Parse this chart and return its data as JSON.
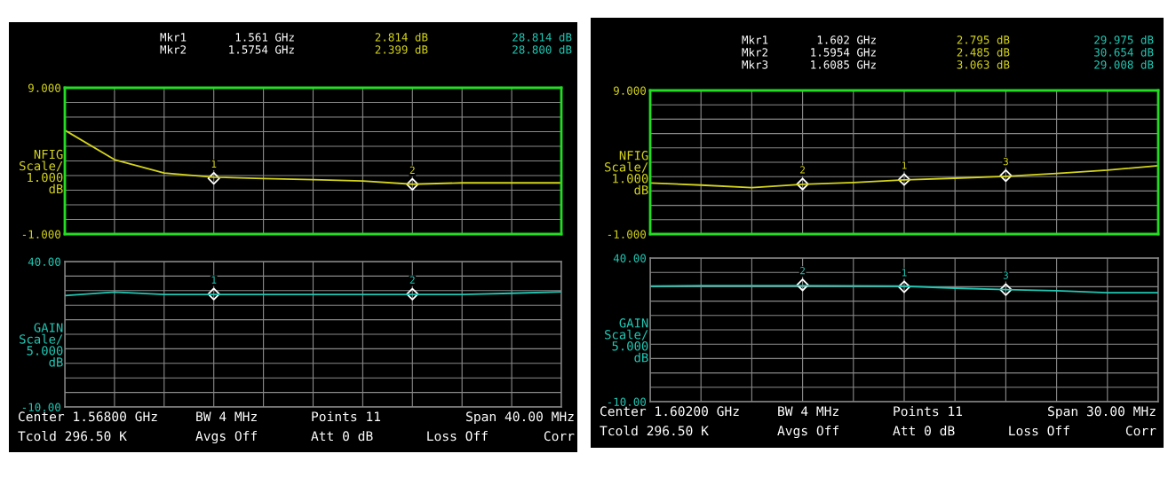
{
  "chart_data": [
    {
      "type": "line",
      "ylabel": "NFIG\nScale/\n1.000\ndB",
      "tick_labels": "y",
      "grid": true,
      "categories": [
        null,
        null,
        null,
        null,
        null,
        null,
        null,
        null,
        null,
        null,
        null
      ],
      "ylim": [
        -1,
        9
      ],
      "yticks": [
        {
          "value": 9,
          "label": "9.000"
        },
        {
          "value": 8,
          "label": null
        },
        {
          "value": 7,
          "label": null
        },
        {
          "value": 6,
          "label": null
        },
        {
          "value": 5,
          "label": null
        },
        {
          "value": 4,
          "label": null
        },
        {
          "value": 3,
          "label": null
        },
        {
          "value": 2,
          "label": null
        },
        {
          "value": 1,
          "label": null
        },
        {
          "value": 0,
          "label": null
        },
        {
          "value": -1,
          "label": "-1.000"
        }
      ],
      "series": [
        {
          "color": "#d4d41c",
          "values": [
            6.1,
            4.09,
            3.18,
            2.89,
            2.8,
            2.72,
            2.63,
            2.41,
            2.5,
            2.5,
            2.5
          ]
        },
        {
          "type": "scatter",
          "marker": "diamond",
          "color": "#ffffff",
          "values": [
            null,
            null,
            null,
            2.814,
            null,
            null,
            null,
            2.399,
            null,
            null,
            null
          ]
        }
      ],
      "annotations": [
        "Mkr1",
        "1.561 GHz",
        "2.814 dB",
        "28.814 dB",
        "Mkr2",
        "1.5754 GHz",
        "2.399 dB",
        "28.800 dB",
        "1",
        "2"
      ]
    },
    {
      "type": "line",
      "ylabel": "GAIN\nScale/\n5.000\ndB",
      "tick_labels": "y",
      "grid": true,
      "categories": [
        null,
        null,
        null,
        null,
        null,
        null,
        null,
        null,
        null,
        null,
        null
      ],
      "ylim": [
        -10,
        40
      ],
      "yticks": [
        {
          "value": 40,
          "label": "40.00"
        },
        {
          "value": 35,
          "label": null
        },
        {
          "value": 30,
          "label": null
        },
        {
          "value": 25,
          "label": null
        },
        {
          "value": 20,
          "label": null
        },
        {
          "value": 15,
          "label": null
        },
        {
          "value": 10,
          "label": null
        },
        {
          "value": 5,
          "label": null
        },
        {
          "value": 0,
          "label": null
        },
        {
          "value": -5,
          "label": null
        },
        {
          "value": -10,
          "label": "-10.00"
        }
      ],
      "series": [
        {
          "color": "#1fc8b4",
          "values": [
            28.3,
            29.5,
            28.7,
            28.7,
            28.7,
            28.7,
            28.7,
            28.7,
            28.7,
            29.1,
            29.6
          ]
        },
        {
          "type": "scatter",
          "marker": "diamond",
          "color": "#ffffff",
          "values": [
            null,
            null,
            null,
            28.814,
            null,
            null,
            null,
            28.8,
            null,
            null,
            null
          ]
        }
      ],
      "annotations": [
        "Center 1.56800 GHz",
        "BW 4 MHz",
        "Points 11",
        "Span 40.00 MHz",
        "Tcold 296.50 K",
        "Avgs Off",
        "Att 0 dB",
        "Loss Off",
        "Corr",
        "1",
        "2"
      ]
    },
    {
      "type": "line",
      "ylabel": "NFIG\nScale/\n1.000\ndB",
      "tick_labels": "y",
      "grid": true,
      "categories": [
        null,
        null,
        null,
        null,
        null,
        null,
        null,
        null,
        null,
        null,
        null
      ],
      "ylim": [
        -1,
        9
      ],
      "yticks": [
        {
          "value": 9,
          "label": "9.000"
        },
        {
          "value": 8,
          "label": null
        },
        {
          "value": 7,
          "label": null
        },
        {
          "value": 6,
          "label": null
        },
        {
          "value": 5,
          "label": null
        },
        {
          "value": 4,
          "label": null
        },
        {
          "value": 3,
          "label": null
        },
        {
          "value": 2,
          "label": null
        },
        {
          "value": 1,
          "label": null
        },
        {
          "value": 0,
          "label": null
        },
        {
          "value": -1,
          "label": "-1.000"
        }
      ],
      "series": [
        {
          "color": "#d4d41c",
          "values": [
            2.56,
            2.41,
            2.23,
            2.46,
            2.59,
            2.77,
            2.89,
            3.02,
            3.22,
            3.45,
            3.76
          ]
        },
        {
          "type": "scatter",
          "marker": "diamond",
          "color": "#ffffff",
          "values": [
            null,
            null,
            null,
            2.485,
            null,
            2.795,
            null,
            3.063,
            null,
            null,
            null
          ]
        }
      ],
      "annotations": [
        "Mkr1",
        "1.602 GHz",
        "2.795 dB",
        "29.975 dB",
        "Mkr2",
        "1.5954 GHz",
        "2.485 dB",
        "30.654 dB",
        "Mkr3",
        "1.6085 GHz",
        "3.063 dB",
        "29.008 dB",
        "2",
        "1",
        "3"
      ]
    },
    {
      "type": "line",
      "ylabel": "GAIN\nScale/\n5.000\ndB",
      "tick_labels": "y",
      "grid": true,
      "categories": [
        null,
        null,
        null,
        null,
        null,
        null,
        null,
        null,
        null,
        null,
        null
      ],
      "ylim": [
        -10,
        40
      ],
      "yticks": [
        {
          "value": 40,
          "label": "40.00"
        },
        {
          "value": 35,
          "label": null
        },
        {
          "value": 30,
          "label": null
        },
        {
          "value": 25,
          "label": null
        },
        {
          "value": 20,
          "label": null
        },
        {
          "value": 15,
          "label": null
        },
        {
          "value": 10,
          "label": null
        },
        {
          "value": 5,
          "label": null
        },
        {
          "value": 0,
          "label": null
        },
        {
          "value": -5,
          "label": null
        },
        {
          "value": -10,
          "label": "-10.00"
        }
      ],
      "series": [
        {
          "color": "#1fc8b4",
          "values": [
            30.2,
            30.4,
            30.4,
            30.4,
            30.3,
            30.2,
            29.5,
            29.0,
            28.6,
            27.9,
            27.9
          ]
        },
        {
          "type": "scatter",
          "marker": "diamond",
          "color": "#ffffff",
          "values": [
            null,
            null,
            null,
            30.654,
            null,
            29.975,
            null,
            29.008,
            null,
            null,
            null
          ]
        }
      ],
      "annotations": [
        "Center 1.60200 GHz",
        "BW 4 MHz",
        "Points 11",
        "Span 30.00 MHz",
        "Tcold 296.50 K",
        "Avgs Off",
        "Att 0 dB",
        "Loss Off",
        "Corr",
        "2",
        "1",
        "3"
      ]
    }
  ]
}
